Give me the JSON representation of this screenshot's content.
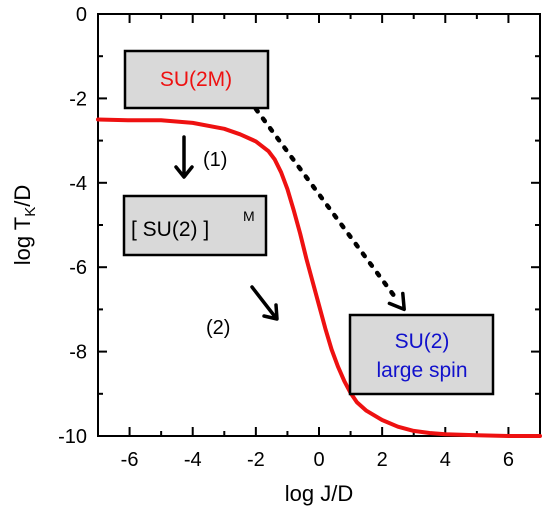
{
  "chart_data": {
    "type": "line",
    "xlabel": "log J/D",
    "ylabel_main": "log T",
    "ylabel_sub": "K",
    "ylabel_tail": "/D",
    "xlim": [
      -7,
      7
    ],
    "ylim": [
      -10,
      0
    ],
    "x_ticks": [
      -6,
      -4,
      -2,
      0,
      2,
      4,
      6
    ],
    "x_tick_labels": [
      "-6",
      "-4",
      "-2",
      "0",
      "2",
      "4",
      "6"
    ],
    "y_ticks": [
      0,
      -2,
      -4,
      -6,
      -8,
      -10
    ],
    "y_tick_labels": [
      "0",
      "-2",
      "-4",
      "-6",
      "-8",
      "-10"
    ],
    "grid": false,
    "series": [
      {
        "color": "#ee1111",
        "x": [
          -7.0,
          -6.0,
          -5.0,
          -4.0,
          -3.0,
          -2.5,
          -2.0,
          -1.6,
          -1.4,
          -1.2,
          -1.0,
          -0.8,
          -0.6,
          -0.4,
          -0.2,
          0.0,
          0.2,
          0.4,
          0.6,
          0.8,
          1.0,
          1.2,
          1.5,
          2.0,
          2.5,
          3.0,
          3.5,
          4.0,
          5.0,
          6.0,
          7.0
        ],
        "y": [
          -2.5,
          -2.52,
          -2.52,
          -2.58,
          -2.72,
          -2.85,
          -3.02,
          -3.25,
          -3.45,
          -3.75,
          -4.15,
          -4.65,
          -5.2,
          -5.8,
          -6.35,
          -6.9,
          -7.45,
          -7.95,
          -8.35,
          -8.7,
          -8.98,
          -9.2,
          -9.4,
          -9.62,
          -9.78,
          -9.88,
          -9.93,
          -9.96,
          -9.98,
          -10.0,
          -10.0
        ]
      }
    ],
    "dotted_arrow": {
      "from": [
        -2.0,
        -2.25
      ],
      "to": [
        2.7,
        -7.0
      ]
    },
    "boxes": {
      "su2m": {
        "label": "SU(2M)",
        "text_color": "#ee1111"
      },
      "su2_power": {
        "label": "[ SU(2) ]",
        "superscript": "M",
        "text_color": "#000000"
      },
      "su2_large": {
        "line1": "SU(2)",
        "line2": "large spin",
        "text_color": "#1111cc"
      }
    },
    "steps": {
      "step1": {
        "label": "(1)"
      },
      "step2": {
        "label": "(2)"
      }
    },
    "colors": {
      "curve": "#ee1111",
      "box_fill": "#d9d9d9",
      "box_stroke": "#000000",
      "axes": "#000000"
    }
  }
}
